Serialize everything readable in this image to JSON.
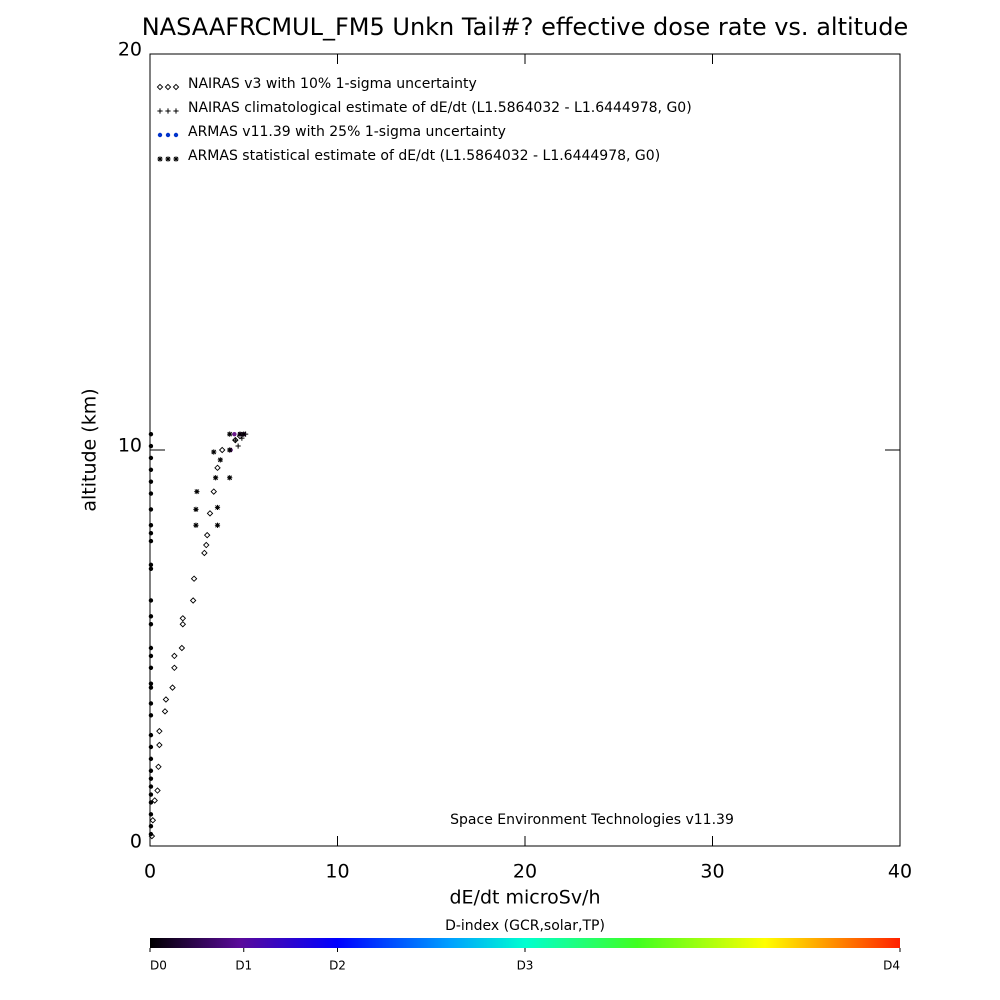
{
  "chart_data": {
    "type": "scatter",
    "title": "NASAAFRCMUL_FM5 Unkn Tail#? effective dose rate vs. altitude",
    "x_label": "dE/dt microSv/h",
    "y_label": "altitude (km)",
    "annotation": "Space Environment Technologies v11.39",
    "xlim": [
      0,
      40
    ],
    "xticks": [
      0,
      10,
      20,
      30,
      40
    ],
    "ylim": [
      0,
      20
    ],
    "yticks": [
      0,
      10,
      20
    ],
    "legend": "upper left",
    "series": [
      {
        "name": "NAIRAS v3 with 10% 1-sigma uncertainty",
        "marker": "diamond",
        "color": "#000000",
        "x": [
          0.1,
          0.15,
          0.25,
          0.4,
          0.45,
          0.5,
          0.5,
          0.8,
          0.85,
          1.2,
          1.3,
          1.3,
          1.7,
          1.75,
          1.75,
          2.3,
          2.35,
          2.9,
          3.0,
          3.05,
          3.2,
          3.4,
          3.6,
          3.85,
          4.55,
          4.8
        ],
        "values": [
          0.25,
          0.65,
          1.15,
          1.4,
          2.0,
          2.55,
          2.9,
          3.4,
          3.7,
          4.0,
          4.5,
          4.8,
          5.0,
          5.6,
          5.75,
          6.2,
          6.75,
          7.4,
          7.6,
          7.85,
          8.4,
          8.95,
          9.55,
          10.0,
          10.25,
          10.35
        ]
      },
      {
        "name": "NAIRAS climatological estimate of dE/dt (L1.5864032 - L1.6444978, G0)",
        "marker": "plus",
        "color": "#000000",
        "x": [
          4.55,
          4.7,
          4.9,
          5.1
        ],
        "values": [
          10.25,
          10.1,
          10.3,
          10.4
        ]
      },
      {
        "name": "ARMAS v11.39 with 25% 1-sigma uncertainty",
        "marker": "dot",
        "color": "#0033cc",
        "x": [
          0.05,
          0.05,
          0.05,
          0.05,
          0.05,
          0.05,
          0.05,
          0.05,
          0.05,
          0.05,
          0.05,
          0.05,
          0.05,
          0.05,
          0.05,
          0.05,
          0.05,
          0.05,
          0.05,
          0.05,
          0.05,
          0.05,
          0.05,
          0.05,
          0.05,
          0.05,
          0.05,
          0.05,
          0.05,
          0.05,
          0.05,
          0.05,
          0.05,
          4.3,
          4.5,
          4.8,
          5.0
        ],
        "values": [
          0.3,
          0.5,
          0.8,
          1.1,
          1.3,
          1.5,
          1.7,
          1.9,
          2.2,
          2.5,
          2.8,
          3.3,
          3.6,
          4.0,
          4.1,
          4.5,
          4.8,
          5.0,
          5.6,
          5.8,
          6.2,
          7.0,
          7.1,
          7.7,
          7.9,
          8.1,
          8.5,
          8.9,
          9.2,
          9.5,
          9.8,
          10.1,
          10.4,
          10.0,
          10.4,
          10.4,
          10.4
        ],
        "colors": [
          "#000000",
          "#000000",
          "#000000",
          "#000000",
          "#000000",
          "#000000",
          "#000000",
          "#000000",
          "#000000",
          "#000000",
          "#000000",
          "#000000",
          "#000000",
          "#000000",
          "#000000",
          "#000000",
          "#000000",
          "#000000",
          "#000000",
          "#000000",
          "#000000",
          "#000000",
          "#000000",
          "#000000",
          "#000000",
          "#000000",
          "#000000",
          "#000000",
          "#000000",
          "#000000",
          "#000000",
          "#000000",
          "#000000",
          "#6a1a8a",
          "#6a1a8a",
          "#6a1a8a",
          "#6a1a8a"
        ]
      },
      {
        "name": "ARMAS statistical estimate of dE/dt (L1.5864032 - L1.6444978, G0)",
        "marker": "asterisk",
        "color": "#000000",
        "x": [
          2.45,
          2.45,
          2.5,
          3.6,
          3.6,
          3.5,
          4.25,
          3.4,
          3.75,
          4.25,
          4.25,
          4.8,
          5.0
        ],
        "values": [
          8.1,
          8.5,
          8.95,
          8.1,
          8.55,
          9.3,
          9.3,
          9.95,
          9.75,
          10.0,
          10.4,
          10.4,
          10.4
        ]
      }
    ],
    "colorbar": {
      "label": "D-index (GCR,solar,TP)",
      "lim": [
        0,
        1
      ],
      "ticks": [
        {
          "value": 0,
          "label": "D0"
        },
        {
          "value": 0.125,
          "label": "D1"
        },
        {
          "value": 0.25,
          "label": "D2"
        },
        {
          "value": 0.5,
          "label": "D3"
        },
        {
          "value": 1,
          "label": "D4"
        }
      ]
    }
  }
}
